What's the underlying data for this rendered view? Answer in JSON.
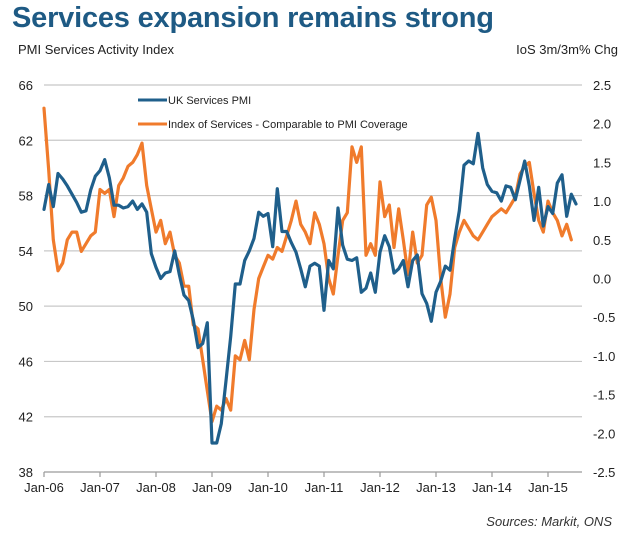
{
  "title": "Services expansion remains strong",
  "source": "Sources: Markit, ONS",
  "colors": {
    "title": "#1e5a84",
    "pmi": "#1f5f8b",
    "ios": "#f07b2c",
    "grid": "#c8c8c8"
  },
  "chart_data": {
    "type": "line",
    "title": "Services expansion remains strong",
    "ylabel": "PMI Services Activity Index",
    "y2label": "IoS 3m/3m% Chg",
    "xlabel": "",
    "ylim": [
      38,
      66
    ],
    "y2lim": [
      -2.5,
      2.5
    ],
    "yticks": [
      "66",
      "62",
      "58",
      "54",
      "50",
      "46",
      "42",
      "38"
    ],
    "y2ticks": [
      "2.5",
      "2.0",
      "1.5",
      "1.0",
      "0.5",
      "0.0",
      "-0.5",
      "-1.0",
      "-1.5",
      "-2.0",
      "-2.5"
    ],
    "xticks": [
      "Jan-06",
      "Jan-07",
      "Jan-08",
      "Jan-09",
      "Jan-10",
      "Jan-11",
      "Jan-12",
      "Jan-13",
      "Jan-14",
      "Jan-15"
    ],
    "x_start": "Jan-06",
    "x_frequency": "monthly",
    "grid": true,
    "legend_position": "top-left-inside",
    "series": [
      {
        "name": "UK Services PMI",
        "axis": "left",
        "color": "#1f5f8b",
        "values": [
          57.0,
          58.8,
          57.2,
          59.6,
          59.2,
          58.7,
          58.1,
          57.5,
          56.8,
          56.9,
          58.4,
          59.4,
          59.8,
          60.6,
          59.3,
          57.3,
          57.3,
          57.1,
          57.2,
          57.6,
          57.0,
          57.4,
          56.8,
          53.8,
          52.8,
          52.0,
          52.4,
          52.5,
          54.0,
          52.3,
          50.8,
          50.4,
          49.0,
          47.0,
          47.3,
          48.8,
          40.1,
          40.1,
          41.5,
          44.6,
          47.8,
          51.6,
          51.6,
          53.3,
          54.0,
          54.9,
          56.8,
          56.5,
          56.7,
          54.3,
          58.5,
          55.4,
          55.4,
          54.6,
          53.9,
          52.7,
          51.4,
          52.9,
          53.1,
          52.9,
          49.7,
          53.3,
          52.7,
          57.1,
          54.4,
          53.4,
          53.3,
          53.5,
          51.0,
          51.3,
          52.4,
          51.0,
          53.9,
          55.1,
          54.3,
          52.4,
          52.7,
          53.3,
          51.4,
          53.3,
          53.7,
          50.9,
          50.2,
          48.9,
          51.0,
          51.8,
          52.9,
          52.6,
          54.9,
          56.9,
          60.2,
          60.5,
          60.3,
          62.5,
          60.0,
          58.8,
          58.3,
          58.2,
          57.6,
          58.7,
          58.6,
          57.7,
          59.1,
          60.5,
          58.7,
          56.2,
          58.6,
          55.8,
          57.2,
          56.7,
          58.9,
          59.5,
          56.5,
          58.1,
          57.4
        ]
      },
      {
        "name": "Index of Services - Comparable to PMI Coverage",
        "axis": "right",
        "color": "#f07b2c",
        "values": [
          2.2,
          1.4,
          0.5,
          0.1,
          0.2,
          0.5,
          0.6,
          0.6,
          0.35,
          0.45,
          0.55,
          0.6,
          1.15,
          1.1,
          1.15,
          0.8,
          1.2,
          1.3,
          1.45,
          1.5,
          1.6,
          1.75,
          1.2,
          0.9,
          0.6,
          0.75,
          0.45,
          0.6,
          0.3,
          0.2,
          -0.1,
          -0.1,
          -0.6,
          -0.65,
          -1.05,
          -1.45,
          -1.85,
          -1.65,
          -1.7,
          -1.55,
          -1.7,
          -1.0,
          -1.05,
          -0.8,
          -1.05,
          -0.4,
          0.0,
          0.15,
          0.3,
          0.25,
          0.4,
          0.35,
          0.55,
          0.75,
          1.0,
          0.7,
          0.6,
          0.45,
          0.85,
          0.7,
          0.45,
          0.0,
          -0.2,
          0.3,
          0.75,
          0.85,
          1.7,
          1.5,
          1.7,
          0.3,
          0.45,
          0.3,
          1.25,
          0.8,
          0.95,
          0.4,
          0.9,
          0.5,
          0.05,
          0.6,
          0.2,
          0.3,
          0.95,
          1.05,
          0.75,
          0.0,
          -0.5,
          -0.2,
          0.4,
          0.6,
          0.75,
          0.65,
          0.55,
          0.5,
          0.6,
          0.7,
          0.8,
          0.85,
          0.9,
          0.85,
          0.95,
          1.05,
          1.35,
          1.45,
          1.5,
          1.1,
          0.75,
          0.6,
          1.0,
          0.85,
          0.75,
          0.55,
          0.7,
          0.5
        ]
      }
    ]
  }
}
